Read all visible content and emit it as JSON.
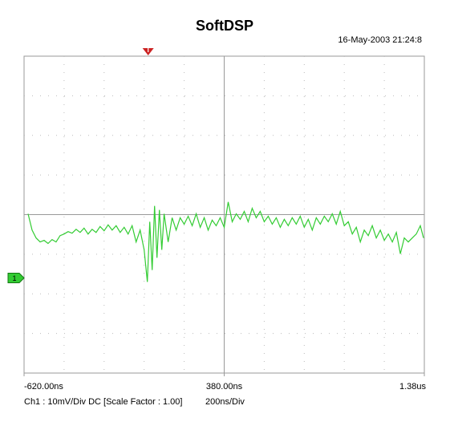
{
  "chart_data": {
    "type": "line",
    "title": "SoftDSP",
    "timestamp": "16-May-2003 21:24:8",
    "channel_info": "Ch1 : 10mV/Div  DC  [Scale Factor : 1.00]",
    "time_base": "200ns/Div",
    "color": "#33cc33",
    "xlim": [
      -620,
      1380
    ],
    "ylim": [
      -24,
      56
    ],
    "xticks": [
      {
        "value": -620,
        "label": "-620.00ns"
      },
      {
        "value": 380,
        "label": "380.00ns"
      },
      {
        "value": 1380,
        "label": "1.38us"
      }
    ],
    "x_grid": [
      -620,
      -420,
      -220,
      -20,
      180,
      380,
      580,
      780,
      980,
      1180,
      1380
    ],
    "y_grid": [
      -24,
      -14,
      -4,
      6,
      16,
      26,
      36,
      46,
      56
    ],
    "trigger": {
      "label": "T",
      "value": 0
    },
    "channel_marker": {
      "label": "1",
      "value": 0
    },
    "x": [
      -600,
      -580,
      -560,
      -540,
      -520,
      -500,
      -480,
      -460,
      -440,
      -420,
      -400,
      -380,
      -360,
      -340,
      -320,
      -300,
      -280,
      -260,
      -240,
      -220,
      -200,
      -180,
      -160,
      -140,
      -120,
      -100,
      -80,
      -60,
      -40,
      -20,
      -4,
      8,
      20,
      32,
      44,
      56,
      68,
      80,
      100,
      120,
      140,
      160,
      180,
      200,
      220,
      240,
      260,
      280,
      300,
      320,
      340,
      360,
      380,
      400,
      420,
      440,
      460,
      480,
      500,
      520,
      540,
      560,
      580,
      600,
      620,
      640,
      660,
      680,
      700,
      720,
      740,
      760,
      780,
      800,
      820,
      840,
      860,
      880,
      900,
      920,
      940,
      960,
      980,
      1000,
      1020,
      1040,
      1060,
      1080,
      1100,
      1120,
      1140,
      1160,
      1180,
      1200,
      1220,
      1240,
      1260,
      1280,
      1300,
      1320,
      1340,
      1360,
      1376
    ],
    "values": [
      16.2,
      12.1,
      10.1,
      9.1,
      9.5,
      8.7,
      9.7,
      9.1,
      10.7,
      11.1,
      11.7,
      11.3,
      12.3,
      11.5,
      12.6,
      11.1,
      12.3,
      11.5,
      13.0,
      11.9,
      13.4,
      12.1,
      13.2,
      11.5,
      12.8,
      11.1,
      13.2,
      9.1,
      12.1,
      7.1,
      -1.0,
      14.2,
      2.0,
      18.2,
      5.1,
      17.2,
      7.1,
      16.2,
      9.1,
      15.2,
      12.1,
      15.2,
      13.6,
      15.6,
      13.2,
      16.2,
      12.8,
      15.2,
      12.1,
      14.6,
      13.2,
      15.2,
      12.8,
      19.2,
      14.2,
      16.2,
      14.8,
      16.8,
      14.2,
      17.6,
      15.2,
      16.8,
      14.2,
      15.6,
      13.6,
      15.2,
      12.8,
      14.8,
      13.2,
      15.2,
      13.6,
      15.6,
      12.8,
      14.8,
      12.1,
      15.2,
      13.6,
      15.6,
      14.2,
      16.2,
      13.6,
      16.8,
      13.2,
      14.2,
      11.1,
      12.8,
      9.1,
      12.1,
      10.7,
      13.2,
      10.1,
      12.1,
      9.5,
      11.1,
      9.1,
      11.5,
      6.1,
      10.1,
      9.1,
      10.1,
      11.1,
      13.2,
      10.1
    ]
  }
}
